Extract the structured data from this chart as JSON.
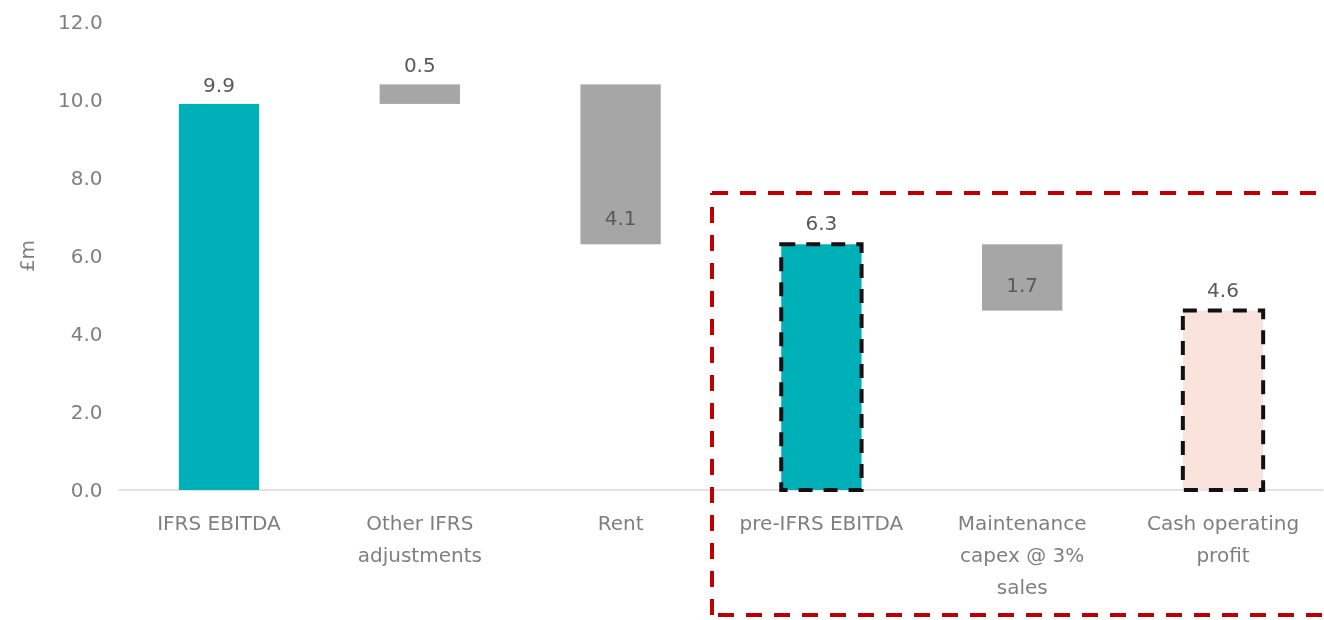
{
  "chart_data": {
    "type": "bar",
    "ylabel": "£m",
    "categories": [
      "IFRS EBITDA",
      "Other IFRS adjustments",
      "Rent",
      "pre-IFRS EBITDA",
      "Maintenance capex @ 3% sales",
      "Cash operating profit"
    ],
    "values": [
      9.9,
      0.5,
      4.1,
      6.3,
      1.7,
      4.6
    ],
    "base": [
      0,
      9.9,
      6.3,
      0,
      4.6,
      0
    ],
    "colors": [
      "#00b0b9",
      "#a6a6a6",
      "#a6a6a6",
      "#00b0b9",
      "#a6a6a6",
      "#fbe3dd"
    ],
    "ylim": [
      0,
      12
    ],
    "yticks": [
      {
        "value": 0,
        "label": "0.0"
      },
      {
        "value": 2,
        "label": "2.0"
      },
      {
        "value": 4,
        "label": "4.0"
      },
      {
        "value": 6,
        "label": "6.0"
      },
      {
        "value": 8,
        "label": "8.0"
      },
      {
        "value": 10,
        "label": "10.0"
      },
      {
        "value": 12,
        "label": "12.0"
      }
    ],
    "data_labels": true
  }
}
